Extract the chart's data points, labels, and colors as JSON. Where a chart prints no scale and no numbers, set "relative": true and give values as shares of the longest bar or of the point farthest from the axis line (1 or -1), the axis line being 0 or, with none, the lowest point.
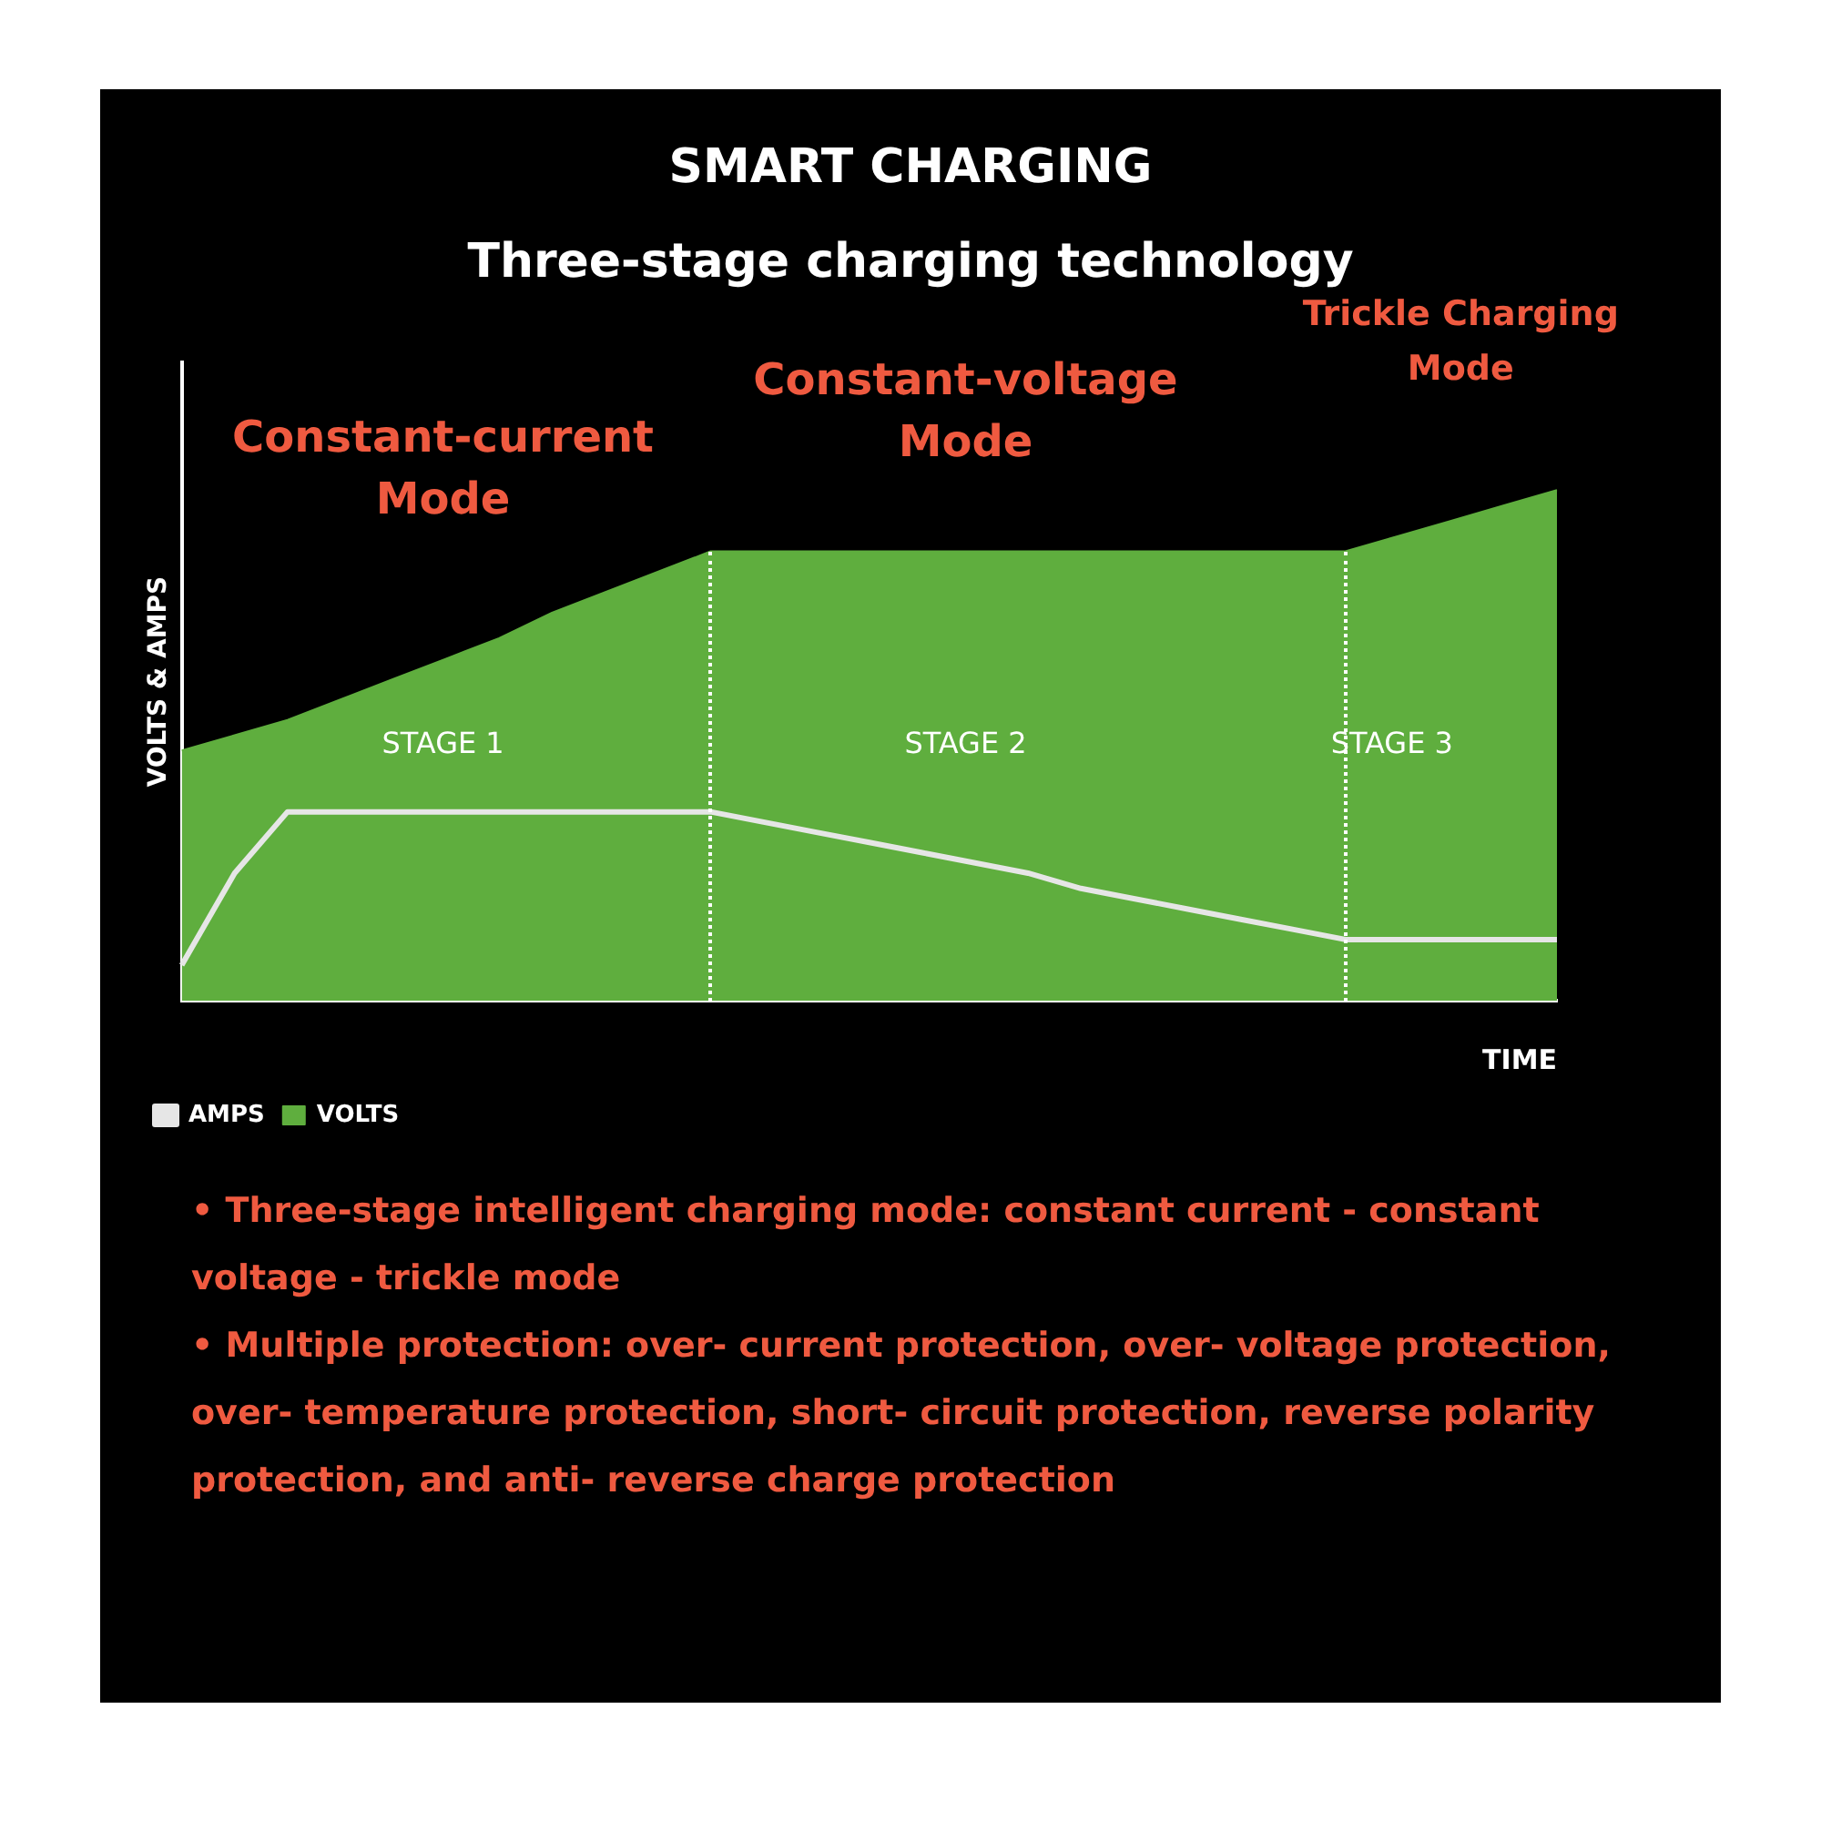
{
  "chart_data": {
    "type": "area",
    "title": "SMART CHARGING",
    "subtitle": "Three-stage charging technology",
    "xlabel": "TIME",
    "ylabel": "VOLTS & AMPS",
    "relative": true,
    "legend": "bottom left",
    "categories": [
      null,
      null,
      null,
      null,
      null,
      null,
      null,
      null,
      null,
      null,
      null,
      null,
      null,
      null,
      null,
      null,
      null,
      null,
      null,
      null,
      null,
      null,
      null,
      null,
      null,
      null,
      null
    ],
    "series": [
      {
        "name": "AMPS",
        "type": "line",
        "color": "#e6e6e6",
        "values": [
          0.07,
          0.25,
          0.37,
          0.37,
          0.37,
          0.37,
          0.37,
          0.37,
          0.37,
          0.37,
          0.37,
          0.35,
          0.33,
          0.31,
          0.29,
          0.27,
          0.25,
          0.22,
          0.2,
          0.18,
          0.16,
          0.14,
          0.12,
          0.12,
          0.12,
          0.12,
          0.12
        ]
      },
      {
        "name": "VOLTS",
        "color": "#5fae3e",
        "values": [
          0.49,
          0.52,
          0.55,
          0.59,
          0.63,
          0.67,
          0.71,
          0.76,
          0.8,
          0.84,
          0.88,
          0.88,
          0.88,
          0.88,
          0.88,
          0.88,
          0.88,
          0.88,
          0.88,
          0.88,
          0.88,
          0.88,
          0.88,
          0.91,
          0.94,
          0.97,
          1
        ]
      }
    ],
    "annotations": [
      "Constant-current Mode",
      "Constant-voltage Mode",
      "Trickle Charging Mode",
      "STAGE 1",
      "STAGE 2",
      "STAGE 3",
      "• Three-stage intelligent charging mode: constant current - constant voltage - trickle mode",
      "• Multiple protection: over- current protection, over- voltage protection, over- temperature protection, short- circuit protection, reverse polarity protection, and anti- reverse charge protection"
    ]
  }
}
